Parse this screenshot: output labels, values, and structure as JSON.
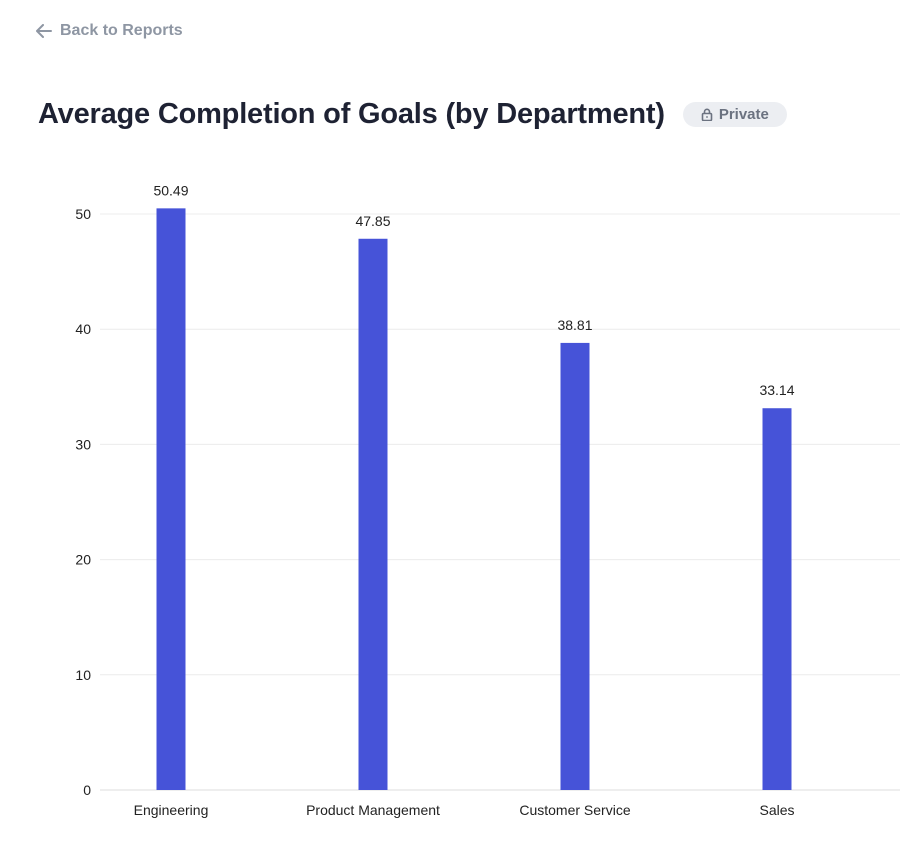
{
  "nav": {
    "back_label": "Back to Reports",
    "back_icon": "arrow-left-icon"
  },
  "header": {
    "title": "Average Completion of Goals (by Department)",
    "visibility_badge": "Private",
    "visibility_icon": "lock-icon"
  },
  "colors": {
    "bar": "#4653d8",
    "axis_text": "#222222",
    "grid": "#ececec",
    "title": "#1e2233",
    "muted": "#8e96a3"
  },
  "chart_data": {
    "type": "bar",
    "categories": [
      "Engineering",
      "Product Management",
      "Customer Service",
      "Sales"
    ],
    "values": [
      50.49,
      47.85,
      38.81,
      33.14
    ],
    "data_labels": [
      "50.49",
      "47.85",
      "38.81",
      "33.14"
    ],
    "yticks": [
      0,
      10,
      20,
      30,
      40,
      50
    ],
    "ylim": [
      0,
      50
    ],
    "xlabel": "",
    "ylabel": "",
    "grid": true,
    "legend": "none"
  }
}
